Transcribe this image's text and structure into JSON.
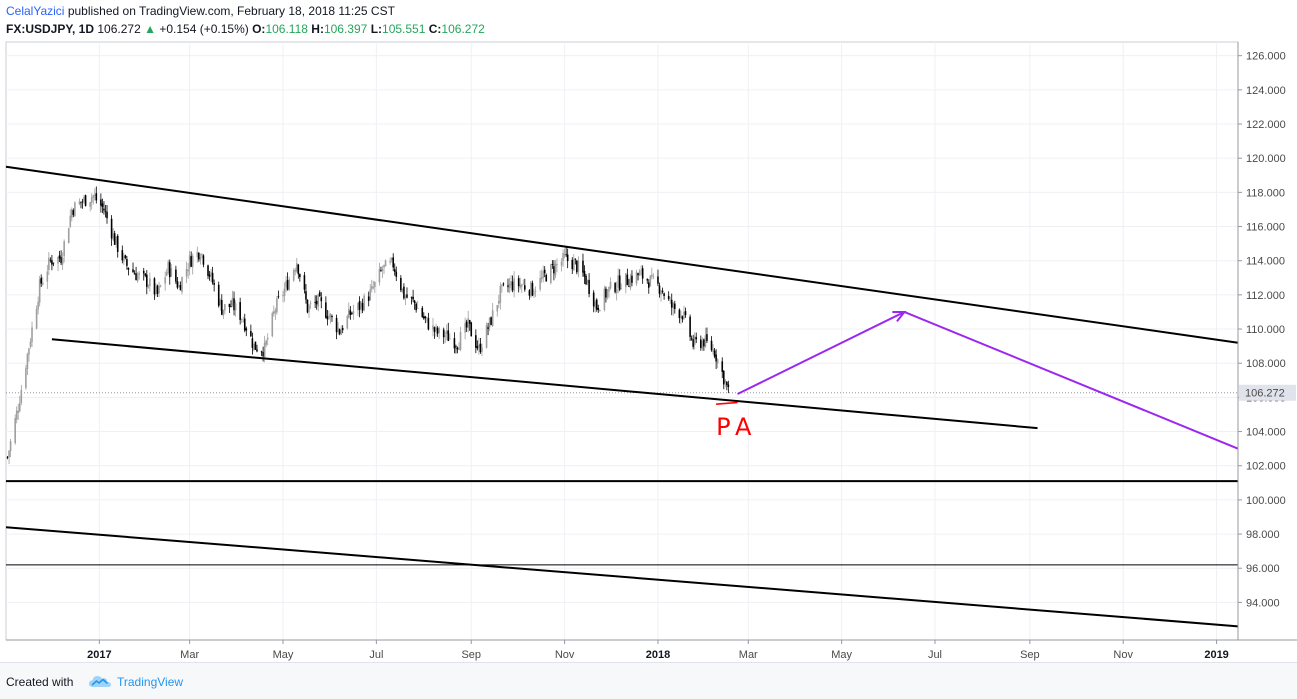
{
  "header": {
    "author": "CelalYazici",
    "published_text": "published on TradingView.com, February 18, 2018 11:25 CST",
    "symbol": "FX:USDJPY, 1D",
    "last": "106.272",
    "change_arrow": "▲",
    "change": "+0.154 (+0.15%)",
    "o_label": "O:",
    "o_value": "106.118",
    "h_label": "H:",
    "h_value": "106.397",
    "l_label": "L:",
    "l_value": "105.551",
    "c_label": "C:",
    "c_value": "106.272"
  },
  "footer": {
    "created_with": "Created with",
    "brand": "TradingView",
    "logo_icon": "tradingview-cloud-icon"
  },
  "chart_data": {
    "type": "candlestick",
    "ylim": [
      91.8,
      126.8
    ],
    "x_range": [
      "2016-11-01",
      "2019-01-15"
    ],
    "y_ticks": [
      "126.000",
      "124.000",
      "122.000",
      "120.000",
      "118.000",
      "116.000",
      "114.000",
      "112.000",
      "110.000",
      "108.000",
      "106.000",
      "104.000",
      "102.000",
      "100.000",
      "98.000",
      "96.000",
      "94.000"
    ],
    "x_ticks": [
      {
        "label": "2017",
        "date": "2017-01-01",
        "bold": true
      },
      {
        "label": "Mar",
        "date": "2017-03-01",
        "bold": false
      },
      {
        "label": "May",
        "date": "2017-05-01",
        "bold": false
      },
      {
        "label": "Jul",
        "date": "2017-07-01",
        "bold": false
      },
      {
        "label": "Sep",
        "date": "2017-09-01",
        "bold": false
      },
      {
        "label": "Nov",
        "date": "2017-11-01",
        "bold": false
      },
      {
        "label": "2018",
        "date": "2018-01-01",
        "bold": true
      },
      {
        "label": "Mar",
        "date": "2018-03-01",
        "bold": false
      },
      {
        "label": "May",
        "date": "2018-05-01",
        "bold": false
      },
      {
        "label": "Jul",
        "date": "2018-07-01",
        "bold": false
      },
      {
        "label": "Sep",
        "date": "2018-09-01",
        "bold": false
      },
      {
        "label": "Nov",
        "date": "2018-11-01",
        "bold": false
      },
      {
        "label": "2019",
        "date": "2019-01-01",
        "bold": true
      }
    ],
    "price_label": "106.272",
    "last_price": 106.272,
    "colors": {
      "up": "#9e9e9e",
      "down": "#000000",
      "trendline": "#000000",
      "projection": "#9c27f0",
      "annotation": "#ff0000",
      "price_label_bg": "#e0e3eb"
    },
    "close_path": [
      [
        "2016-11-02",
        102.5
      ],
      [
        "2016-11-09",
        105.5
      ],
      [
        "2016-11-16",
        109.0
      ],
      [
        "2016-11-23",
        112.5
      ],
      [
        "2016-11-30",
        114.0
      ],
      [
        "2016-12-07",
        114.2
      ],
      [
        "2016-12-14",
        117.0
      ],
      [
        "2016-12-21",
        117.5
      ],
      [
        "2016-12-28",
        117.8
      ],
      [
        "2017-01-04",
        117.0
      ],
      [
        "2017-01-11",
        115.2
      ],
      [
        "2017-01-18",
        113.8
      ],
      [
        "2017-01-25",
        113.2
      ],
      [
        "2017-02-01",
        112.8
      ],
      [
        "2017-02-08",
        112.0
      ],
      [
        "2017-02-15",
        113.6
      ],
      [
        "2017-02-22",
        112.5
      ],
      [
        "2017-03-01",
        114.0
      ],
      [
        "2017-03-08",
        114.6
      ],
      [
        "2017-03-15",
        113.0
      ],
      [
        "2017-03-22",
        111.2
      ],
      [
        "2017-03-29",
        111.4
      ],
      [
        "2017-04-05",
        110.6
      ],
      [
        "2017-04-12",
        109.0
      ],
      [
        "2017-04-19",
        108.8
      ],
      [
        "2017-04-26",
        111.2
      ],
      [
        "2017-05-03",
        112.5
      ],
      [
        "2017-05-10",
        114.0
      ],
      [
        "2017-05-17",
        111.2
      ],
      [
        "2017-05-24",
        111.6
      ],
      [
        "2017-05-31",
        110.8
      ],
      [
        "2017-06-07",
        109.9
      ],
      [
        "2017-06-14",
        110.9
      ],
      [
        "2017-06-21",
        111.4
      ],
      [
        "2017-06-28",
        112.2
      ],
      [
        "2017-07-05",
        113.5
      ],
      [
        "2017-07-12",
        113.8
      ],
      [
        "2017-07-19",
        112.0
      ],
      [
        "2017-07-26",
        111.5
      ],
      [
        "2017-08-02",
        110.5
      ],
      [
        "2017-08-09",
        109.8
      ],
      [
        "2017-08-16",
        109.6
      ],
      [
        "2017-08-23",
        109.2
      ],
      [
        "2017-08-30",
        110.2
      ],
      [
        "2017-09-06",
        108.8
      ],
      [
        "2017-09-13",
        110.3
      ],
      [
        "2017-09-20",
        112.1
      ],
      [
        "2017-09-27",
        112.6
      ],
      [
        "2017-10-04",
        112.6
      ],
      [
        "2017-10-11",
        112.3
      ],
      [
        "2017-10-18",
        113.0
      ],
      [
        "2017-10-25",
        113.6
      ],
      [
        "2017-11-01",
        114.1
      ],
      [
        "2017-11-08",
        113.8
      ],
      [
        "2017-11-15",
        112.9
      ],
      [
        "2017-11-22",
        111.3
      ],
      [
        "2017-11-29",
        112.2
      ],
      [
        "2017-12-06",
        112.7
      ],
      [
        "2017-12-13",
        112.9
      ],
      [
        "2017-12-20",
        113.2
      ],
      [
        "2017-12-27",
        112.8
      ],
      [
        "2018-01-03",
        112.4
      ],
      [
        "2018-01-10",
        111.3
      ],
      [
        "2018-01-17",
        110.9
      ],
      [
        "2018-01-24",
        109.1
      ],
      [
        "2018-01-31",
        109.3
      ],
      [
        "2018-02-07",
        108.7
      ],
      [
        "2018-02-14",
        106.9
      ],
      [
        "2018-02-16",
        106.3
      ]
    ],
    "lines": [
      {
        "name": "upper-channel-line",
        "points": [
          [
            "2016-11-01",
            119.5
          ],
          [
            "2019-01-15",
            109.2
          ]
        ],
        "width": 2
      },
      {
        "name": "lower-channel-line",
        "points": [
          [
            "2016-12-01",
            109.4
          ],
          [
            "2018-09-06",
            104.2
          ]
        ],
        "width": 2
      },
      {
        "name": "horizontal-support-line",
        "points": [
          [
            "2016-11-01",
            101.1
          ],
          [
            "2019-01-15",
            101.1
          ]
        ],
        "width": 2
      },
      {
        "name": "bottom-trendline",
        "points": [
          [
            "2016-11-01",
            98.4
          ],
          [
            "2019-01-15",
            92.6
          ]
        ],
        "width": 2
      },
      {
        "name": "horizontal-96-line",
        "points": [
          [
            "2016-11-01",
            96.2
          ],
          [
            "2019-01-15",
            96.2
          ]
        ],
        "width": 1
      }
    ],
    "projection": [
      [
        "2018-02-22",
        106.2
      ],
      [
        "2018-06-11",
        111.0
      ],
      [
        "2019-01-15",
        103.0
      ]
    ],
    "annotation": {
      "text": "PA",
      "date": "2018-02-08",
      "price": 103.8
    },
    "annotation_underline": [
      [
        "2018-02-08",
        105.6
      ],
      [
        "2018-02-22",
        105.7
      ]
    ]
  }
}
